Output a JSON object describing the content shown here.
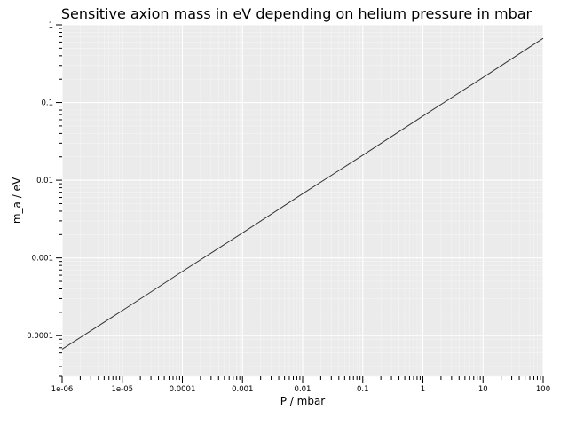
{
  "chart_data": {
    "type": "line",
    "title": "Sensitive axion mass in eV depending on helium pressure in mbar",
    "xlabel": "P / mbar",
    "ylabel": "m_a / eV",
    "x_scale": "log",
    "y_scale": "log",
    "xlim": [
      1e-06,
      100
    ],
    "ylim": [
      3e-05,
      1
    ],
    "grid": true,
    "x_ticks": [
      {
        "value": 1e-06,
        "label": "1e-06"
      },
      {
        "value": 1e-05,
        "label": "1e-05"
      },
      {
        "value": 0.0001,
        "label": "0.0001"
      },
      {
        "value": 0.001,
        "label": "0.001"
      },
      {
        "value": 0.01,
        "label": "0.01"
      },
      {
        "value": 0.1,
        "label": "0.1"
      },
      {
        "value": 1,
        "label": "1"
      },
      {
        "value": 10,
        "label": "10"
      },
      {
        "value": 100,
        "label": "100"
      }
    ],
    "y_ticks": [
      {
        "value": 0.0001,
        "label": "0.0001"
      },
      {
        "value": 0.001,
        "label": "0.001"
      },
      {
        "value": 0.01,
        "label": "0.01"
      },
      {
        "value": 0.1,
        "label": "0.1"
      },
      {
        "value": 1,
        "label": "1"
      }
    ],
    "series": [
      {
        "x": [
          1e-06,
          1e-05,
          0.0001,
          0.001,
          0.01,
          0.1,
          1,
          10,
          100
        ],
        "y": [
          6.7e-05,
          0.00021,
          0.00067,
          0.0021,
          0.0067,
          0.021,
          0.067,
          0.21,
          0.67
        ]
      }
    ]
  },
  "colors": {
    "plot_background": "#ebebeb",
    "grid_major": "#ffffff",
    "grid_minor": "#f5f5f5",
    "line": "#333333",
    "tick": "#000000"
  }
}
